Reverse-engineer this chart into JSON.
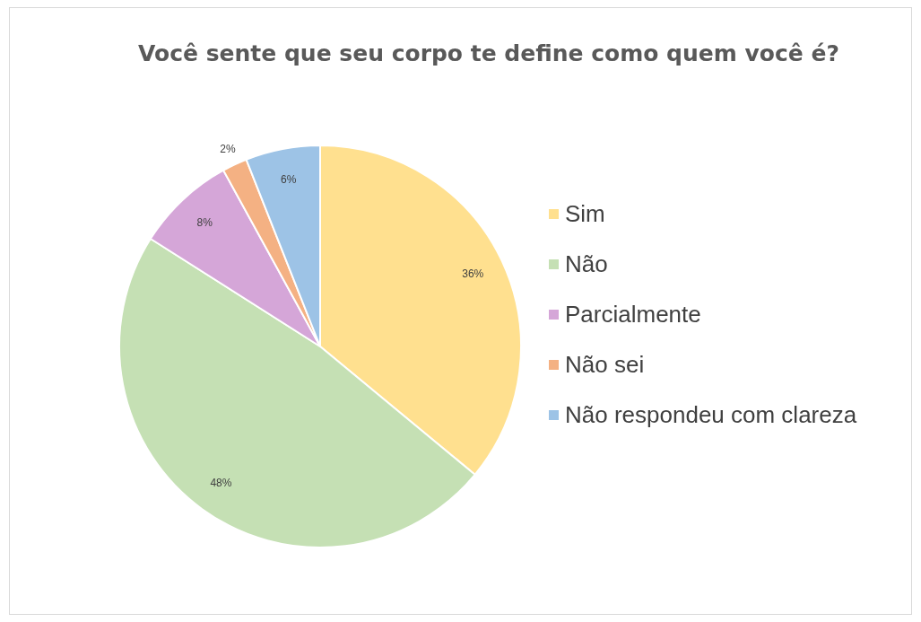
{
  "chart_data": {
    "type": "pie",
    "title": "Você sente que seu corpo te define como quem você é?",
    "categories": [
      "Sim",
      "Não",
      "Parcialmente",
      "Não sei",
      "Não respondeu com clareza"
    ],
    "values": [
      36,
      48,
      8,
      2,
      6
    ],
    "value_labels": [
      "36%",
      "48%",
      "8%",
      "2%",
      "6%"
    ],
    "colors": [
      "#ffe08f",
      "#c5e0b4",
      "#d5a6d8",
      "#f4b183",
      "#9dc3e6"
    ],
    "legend": "right"
  }
}
